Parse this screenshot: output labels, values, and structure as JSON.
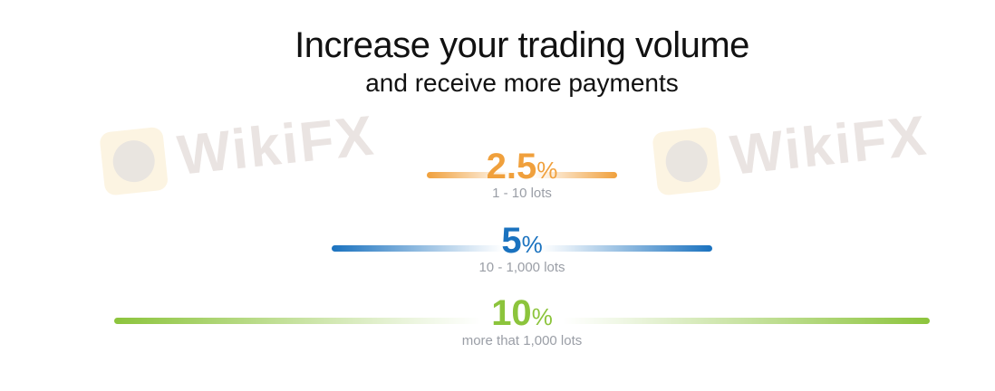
{
  "header": {
    "title": "Increase your trading volume",
    "subtitle": "and receive more payments"
  },
  "watermark": {
    "text": "WikiFX"
  },
  "tiers": [
    {
      "rate": "2.5",
      "unit": "%",
      "range": "1 - 10 lots",
      "color": "#f0a03c"
    },
    {
      "rate": "5",
      "unit": "%",
      "range": "10 - 1,000 lots",
      "color": "#1a72bf"
    },
    {
      "rate": "10",
      "unit": "%",
      "range": "more that 1,000 lots",
      "color": "#8cc43c"
    }
  ]
}
